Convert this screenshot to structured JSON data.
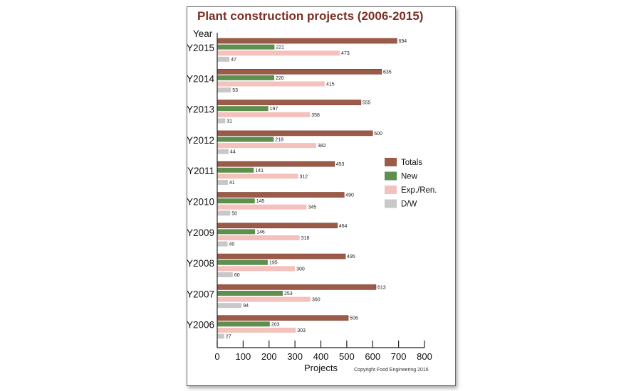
{
  "chart_data": {
    "type": "bar",
    "orientation": "horizontal",
    "title": "Plant construction projects (2006-2015)",
    "ylabel": "Year",
    "xlabel": "Projects",
    "xlim": [
      0,
      800
    ],
    "xticks": [
      0,
      100,
      200,
      300,
      400,
      500,
      600,
      700,
      800
    ],
    "grid": false,
    "legend_position": "right",
    "categories": [
      "Y2015",
      "Y2014",
      "Y2013",
      "Y2012",
      "Y2011",
      "Y2010",
      "Y2009",
      "Y2008",
      "Y2007",
      "Y2006"
    ],
    "series": [
      {
        "name": "Totals",
        "color": "#9c5a48",
        "values": [
          694,
          635,
          555,
          600,
          453,
          490,
          464,
          495,
          613,
          506
        ]
      },
      {
        "name": "New",
        "color": "#5e8f4f",
        "values": [
          221,
          220,
          197,
          218,
          141,
          145,
          146,
          195,
          253,
          203
        ]
      },
      {
        "name": "Exp./Ren.",
        "color": "#f4c1bd",
        "values": [
          473,
          415,
          358,
          382,
          312,
          345,
          318,
          300,
          360,
          303
        ]
      },
      {
        "name": "D/W",
        "color": "#c8c8c8",
        "values": [
          47,
          53,
          31,
          44,
          41,
          50,
          40,
          60,
          94,
          27
        ]
      }
    ],
    "annotations": [
      "Copyright Food Engineering 2016"
    ]
  }
}
